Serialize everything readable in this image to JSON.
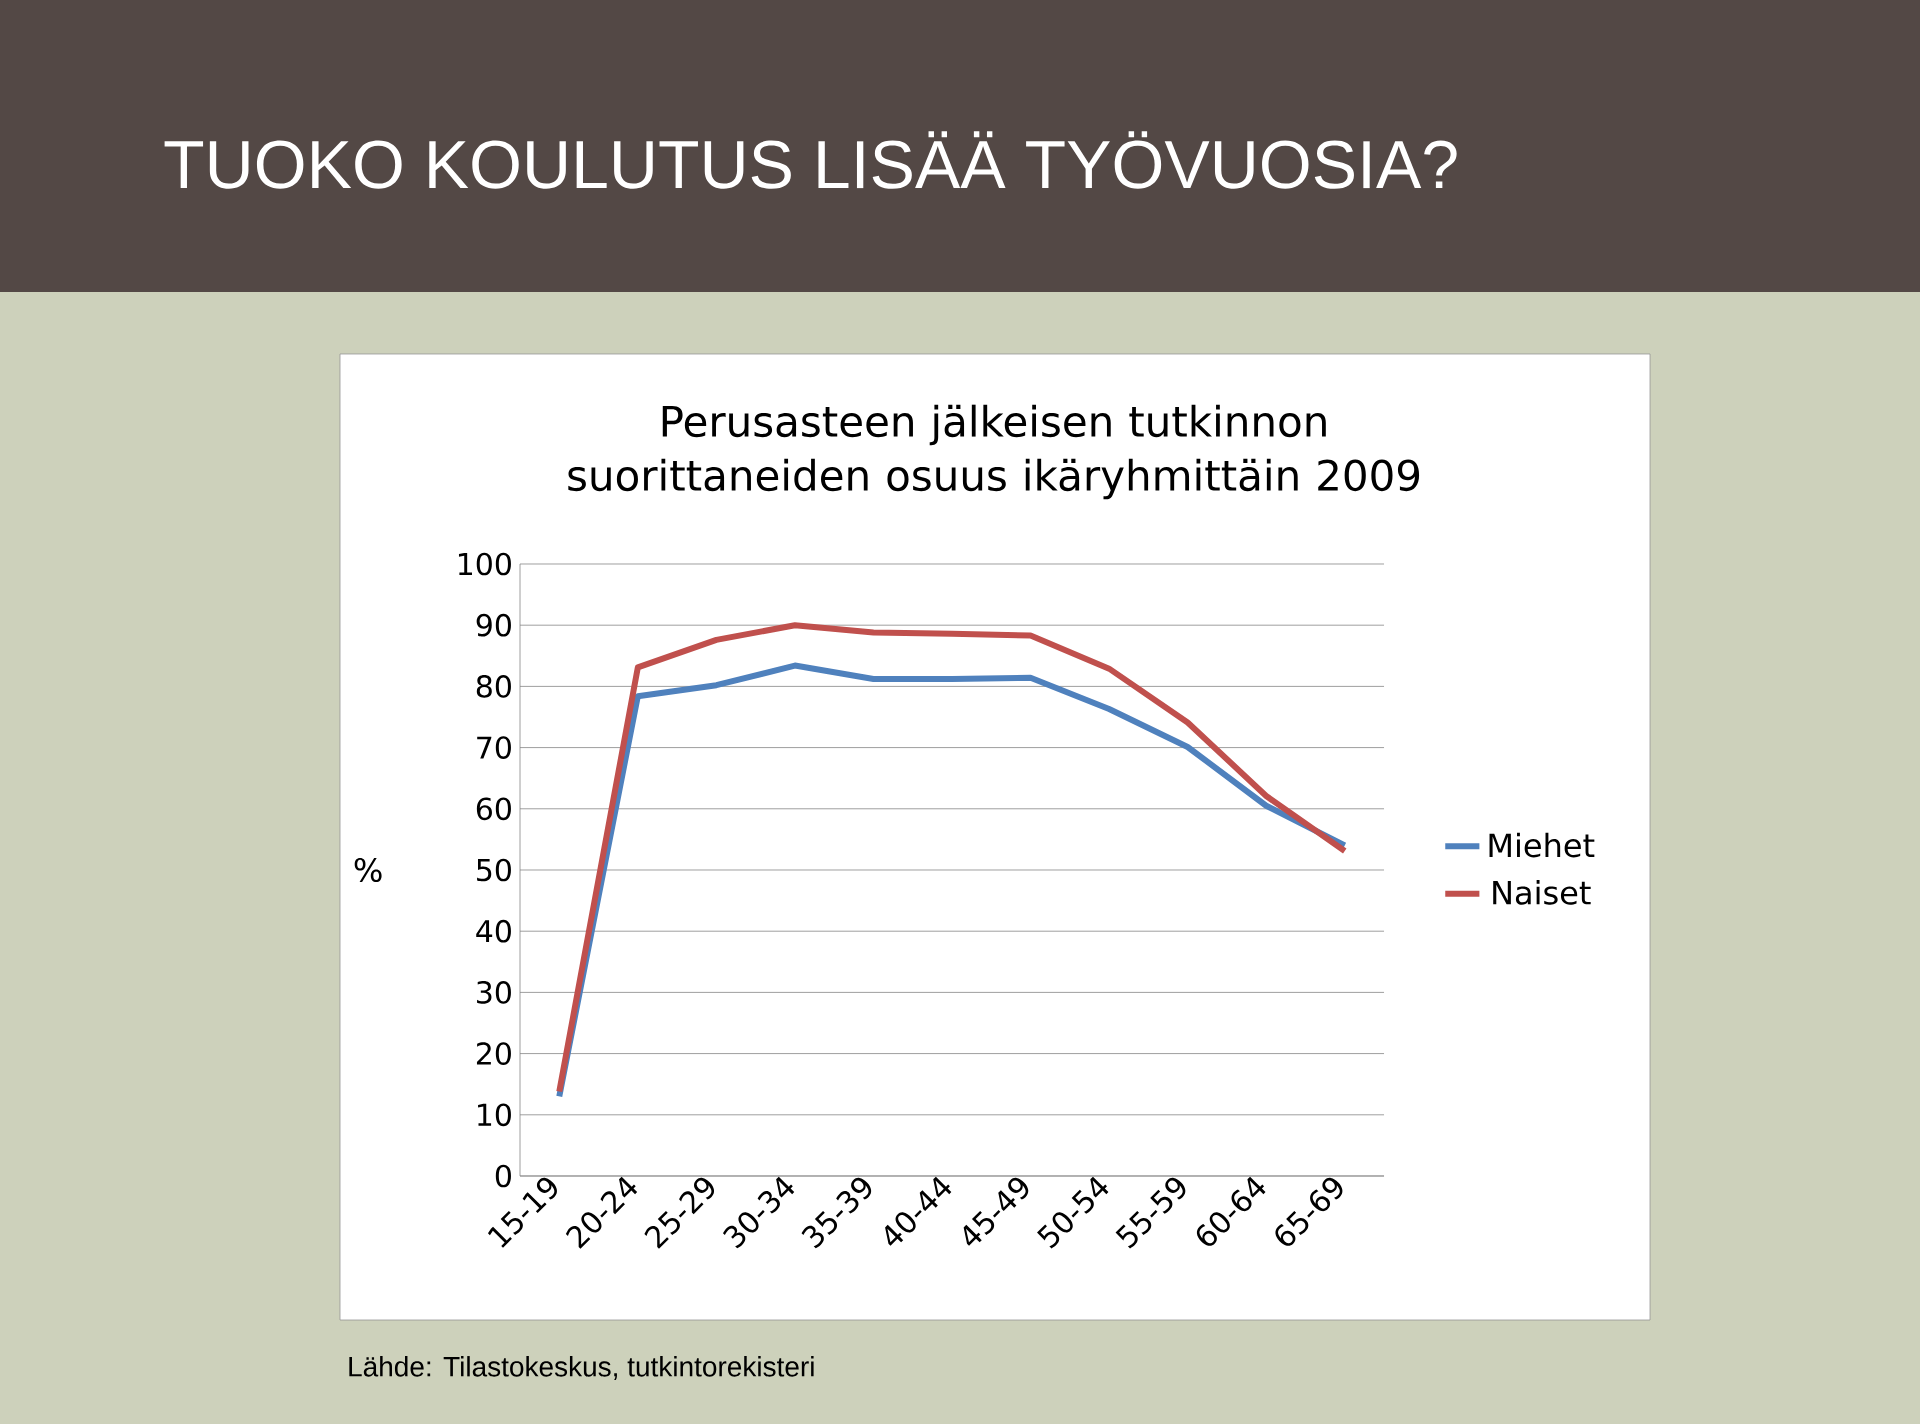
{
  "chart_data": {
    "type": "line",
    "title": "TUOKO KOULUTUS LISÄÄ TYÖVUOSIA?",
    "subtitle": "Perusasteen jälkeisen tutkinnon suorittaneiden osuus ikäryhmittäin 2009",
    "ylabel": "%",
    "categories": [
      "15-19",
      "20-24",
      "25-29",
      "30-34",
      "35-39",
      "40-44",
      "45-49",
      "50-54",
      "55-59",
      "60-64",
      "65-69"
    ],
    "series": [
      {
        "name": "Miehet",
        "color": "#4f81bd",
        "values": [
          13,
          78.4,
          80.2,
          83.4,
          81.2,
          81.2,
          81.4,
          76.3,
          70.1,
          60.5,
          54
        ]
      },
      {
        "name": "Naiset",
        "color": "#c0504d",
        "values": [
          13.8,
          83.1,
          87.6,
          90,
          88.8,
          88.6,
          88.3,
          82.9,
          74.1,
          62.1,
          53.1
        ]
      }
    ],
    "ylim": [
      0,
      100
    ],
    "yticks": [
      0,
      10,
      20,
      30,
      40,
      50,
      60,
      70,
      80,
      90,
      100
    ],
    "grid": "y",
    "legend": "right",
    "line_style": "solid",
    "annotations": [
      "Lähde: Tilastokeskus, tutkintorekisteri"
    ]
  }
}
